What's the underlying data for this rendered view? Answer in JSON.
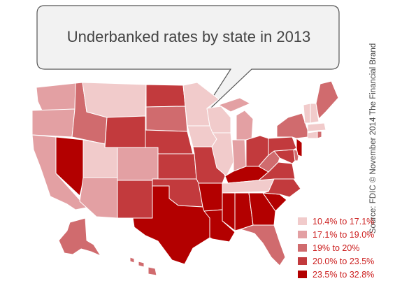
{
  "title": "Underbanked rates by state in 2013",
  "source": "Source: FDIC © November 2014 The Financial Brand",
  "colors": {
    "b1": "#f1cbcb",
    "b2": "#e3a0a3",
    "b3": "#d06b6e",
    "b4": "#c23a3d",
    "b5": "#b30000"
  },
  "legend": [
    {
      "label": "10.4% to 17.1%",
      "color": "#f1cbcb"
    },
    {
      "label": "17.1% to 19.0%",
      "color": "#e3a0a3"
    },
    {
      "label": "19% to 20%",
      "color": "#d06b6e"
    },
    {
      "label": "20.0% to 23.5%",
      "color": "#c23a3d"
    },
    {
      "label": "23.5% to 32.8%",
      "color": "#b30000"
    }
  ]
}
